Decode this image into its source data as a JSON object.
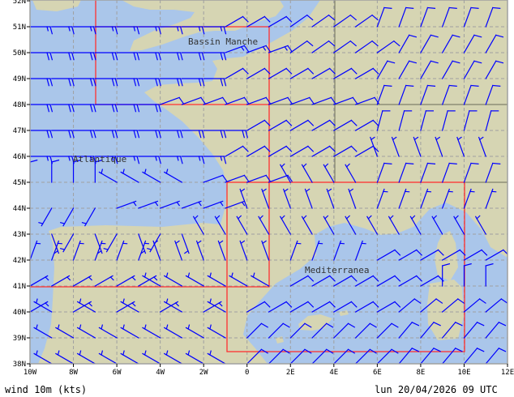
{
  "footer": {
    "variable": "wind 10m (kts)",
    "valid_time": "lun 20/04/2026 09 UTC"
  },
  "map_labels": {
    "channel": "Bassin Manche",
    "atlantic": "Atlantique",
    "mediterranean": "Mediterranea"
  },
  "colors": {
    "water": "#aac6ea",
    "land": "#d6d5b3",
    "barbs": "#0000ff",
    "domain_box": "#ff3030",
    "grid": "#a0a0a0"
  },
  "chart_data": {
    "type": "wind-barbs",
    "xlabel": "",
    "ylabel": "",
    "xlim": [
      -10,
      12
    ],
    "ylim": [
      38,
      52
    ],
    "grid": true,
    "x_ticks": [
      "10W",
      "8W",
      "6W",
      "4W",
      "2W",
      "0",
      "2E",
      "4E",
      "6E",
      "8E",
      "10E",
      "12E"
    ],
    "y_ticks": [
      "38N",
      "39N",
      "40N",
      "41N",
      "42N",
      "43N",
      "44N",
      "45N",
      "46N",
      "47N",
      "48N",
      "49N",
      "50N",
      "51N",
      "52N"
    ],
    "lons": [
      -10,
      -9,
      -8,
      -7,
      -6,
      -5,
      -4,
      -3,
      -2,
      -1,
      0,
      1,
      2,
      3,
      4,
      5,
      6,
      7,
      8,
      9,
      10,
      11
    ],
    "lats": [
      51,
      50,
      49,
      48,
      47,
      46,
      45,
      44,
      43,
      42,
      41,
      40,
      39,
      38
    ],
    "direction_deg": [
      [
        90,
        90,
        90,
        90,
        90,
        90,
        90,
        90,
        90,
        60,
        60,
        60,
        55,
        55,
        55,
        55,
        20,
        20,
        20,
        20,
        20,
        20
      ],
      [
        90,
        90,
        90,
        90,
        90,
        90,
        90,
        90,
        90,
        70,
        70,
        70,
        55,
        55,
        55,
        55,
        55,
        30,
        30,
        30,
        30,
        30
      ],
      [
        90,
        90,
        90,
        90,
        90,
        90,
        90,
        90,
        90,
        60,
        60,
        60,
        60,
        60,
        60,
        60,
        30,
        30,
        30,
        30,
        30,
        30
      ],
      [
        90,
        90,
        90,
        90,
        90,
        90,
        70,
        70,
        70,
        70,
        70,
        70,
        70,
        70,
        70,
        70,
        20,
        20,
        20,
        20,
        20,
        20
      ],
      [
        90,
        90,
        90,
        90,
        90,
        90,
        90,
        90,
        90,
        90,
        60,
        60,
        60,
        60,
        60,
        60,
        15,
        15,
        15,
        15,
        15,
        15
      ],
      [
        90,
        90,
        90,
        90,
        90,
        90,
        90,
        90,
        90,
        60,
        60,
        60,
        60,
        60,
        60,
        60,
        340,
        340,
        340,
        340,
        340,
        340
      ],
      [
        0,
        0,
        0,
        0,
        300,
        300,
        300,
        300,
        70,
        70,
        70,
        70,
        330,
        330,
        330,
        330,
        20,
        20,
        20,
        20,
        20,
        20
      ],
      [
        210,
        210,
        210,
        210,
        70,
        70,
        70,
        70,
        70,
        70,
        340,
        340,
        340,
        340,
        340,
        340,
        20,
        20,
        20,
        20,
        20,
        20
      ],
      [
        210,
        160,
        210,
        160,
        210,
        160,
        210,
        160,
        330,
        330,
        330,
        330,
        330,
        330,
        330,
        330,
        330,
        330,
        330,
        330,
        330,
        330
      ],
      [
        20,
        20,
        20,
        20,
        20,
        20,
        340,
        340,
        340,
        340,
        340,
        340,
        20,
        20,
        20,
        20,
        60,
        60,
        60,
        60,
        60,
        60
      ],
      [
        60,
        60,
        60,
        60,
        60,
        60,
        300,
        300,
        300,
        300,
        300,
        300,
        60,
        60,
        60,
        60,
        60,
        60,
        60,
        0,
        0,
        0
      ],
      [
        60,
        300,
        60,
        300,
        60,
        300,
        60,
        300,
        60,
        300,
        60,
        60,
        60,
        60,
        60,
        60,
        60,
        50,
        50,
        50,
        50,
        50
      ],
      [
        300,
        300,
        300,
        300,
        300,
        300,
        300,
        300,
        300,
        300,
        45,
        45,
        45,
        45,
        45,
        45,
        45,
        40,
        40,
        40,
        40,
        40
      ],
      [
        300,
        300,
        300,
        300,
        300,
        300,
        300,
        300,
        300,
        300,
        45,
        45,
        45,
        45,
        45,
        45,
        45,
        40,
        40,
        40,
        40,
        40
      ]
    ],
    "speed_kts": [
      [
        15,
        15,
        15,
        15,
        15,
        15,
        15,
        15,
        15,
        10,
        10,
        10,
        10,
        10,
        10,
        10,
        10,
        10,
        10,
        10,
        10,
        10
      ],
      [
        20,
        20,
        20,
        20,
        20,
        20,
        20,
        20,
        20,
        15,
        15,
        15,
        10,
        10,
        10,
        10,
        10,
        10,
        10,
        10,
        10,
        10
      ],
      [
        20,
        20,
        20,
        20,
        20,
        20,
        20,
        20,
        20,
        10,
        10,
        10,
        10,
        10,
        10,
        10,
        10,
        10,
        10,
        10,
        10,
        10
      ],
      [
        20,
        20,
        20,
        20,
        20,
        20,
        10,
        10,
        10,
        10,
        10,
        10,
        10,
        10,
        10,
        10,
        10,
        10,
        10,
        10,
        10,
        10
      ],
      [
        20,
        20,
        20,
        20,
        20,
        20,
        20,
        20,
        20,
        20,
        10,
        10,
        10,
        10,
        10,
        10,
        10,
        10,
        10,
        10,
        10,
        10
      ],
      [
        15,
        15,
        15,
        15,
        15,
        15,
        15,
        15,
        15,
        10,
        10,
        10,
        10,
        10,
        10,
        10,
        5,
        5,
        5,
        5,
        5,
        5
      ],
      [
        10,
        10,
        10,
        10,
        5,
        5,
        5,
        5,
        10,
        10,
        10,
        10,
        5,
        5,
        5,
        5,
        10,
        10,
        10,
        10,
        10,
        10
      ],
      [
        5,
        5,
        5,
        5,
        5,
        5,
        5,
        5,
        5,
        5,
        5,
        5,
        5,
        5,
        5,
        5,
        5,
        5,
        5,
        5,
        5,
        5
      ],
      [
        5,
        5,
        5,
        5,
        5,
        5,
        5,
        5,
        5,
        5,
        5,
        5,
        5,
        5,
        5,
        5,
        5,
        5,
        5,
        5,
        5,
        5
      ],
      [
        5,
        5,
        5,
        5,
        5,
        5,
        5,
        5,
        5,
        5,
        5,
        5,
        5,
        5,
        5,
        5,
        10,
        10,
        10,
        10,
        10,
        10
      ],
      [
        5,
        5,
        5,
        5,
        5,
        5,
        5,
        5,
        5,
        5,
        5,
        5,
        10,
        10,
        10,
        10,
        10,
        10,
        10,
        10,
        10,
        10
      ],
      [
        5,
        5,
        5,
        5,
        5,
        5,
        5,
        5,
        5,
        5,
        10,
        10,
        10,
        10,
        10,
        10,
        10,
        10,
        10,
        10,
        10,
        10
      ],
      [
        5,
        5,
        5,
        5,
        5,
        5,
        5,
        5,
        5,
        5,
        10,
        10,
        10,
        10,
        10,
        10,
        10,
        10,
        10,
        10,
        10,
        10
      ],
      [
        5,
        5,
        5,
        5,
        5,
        5,
        5,
        5,
        5,
        5,
        10,
        10,
        10,
        10,
        10,
        10,
        10,
        10,
        10,
        10,
        10,
        10
      ]
    ]
  }
}
